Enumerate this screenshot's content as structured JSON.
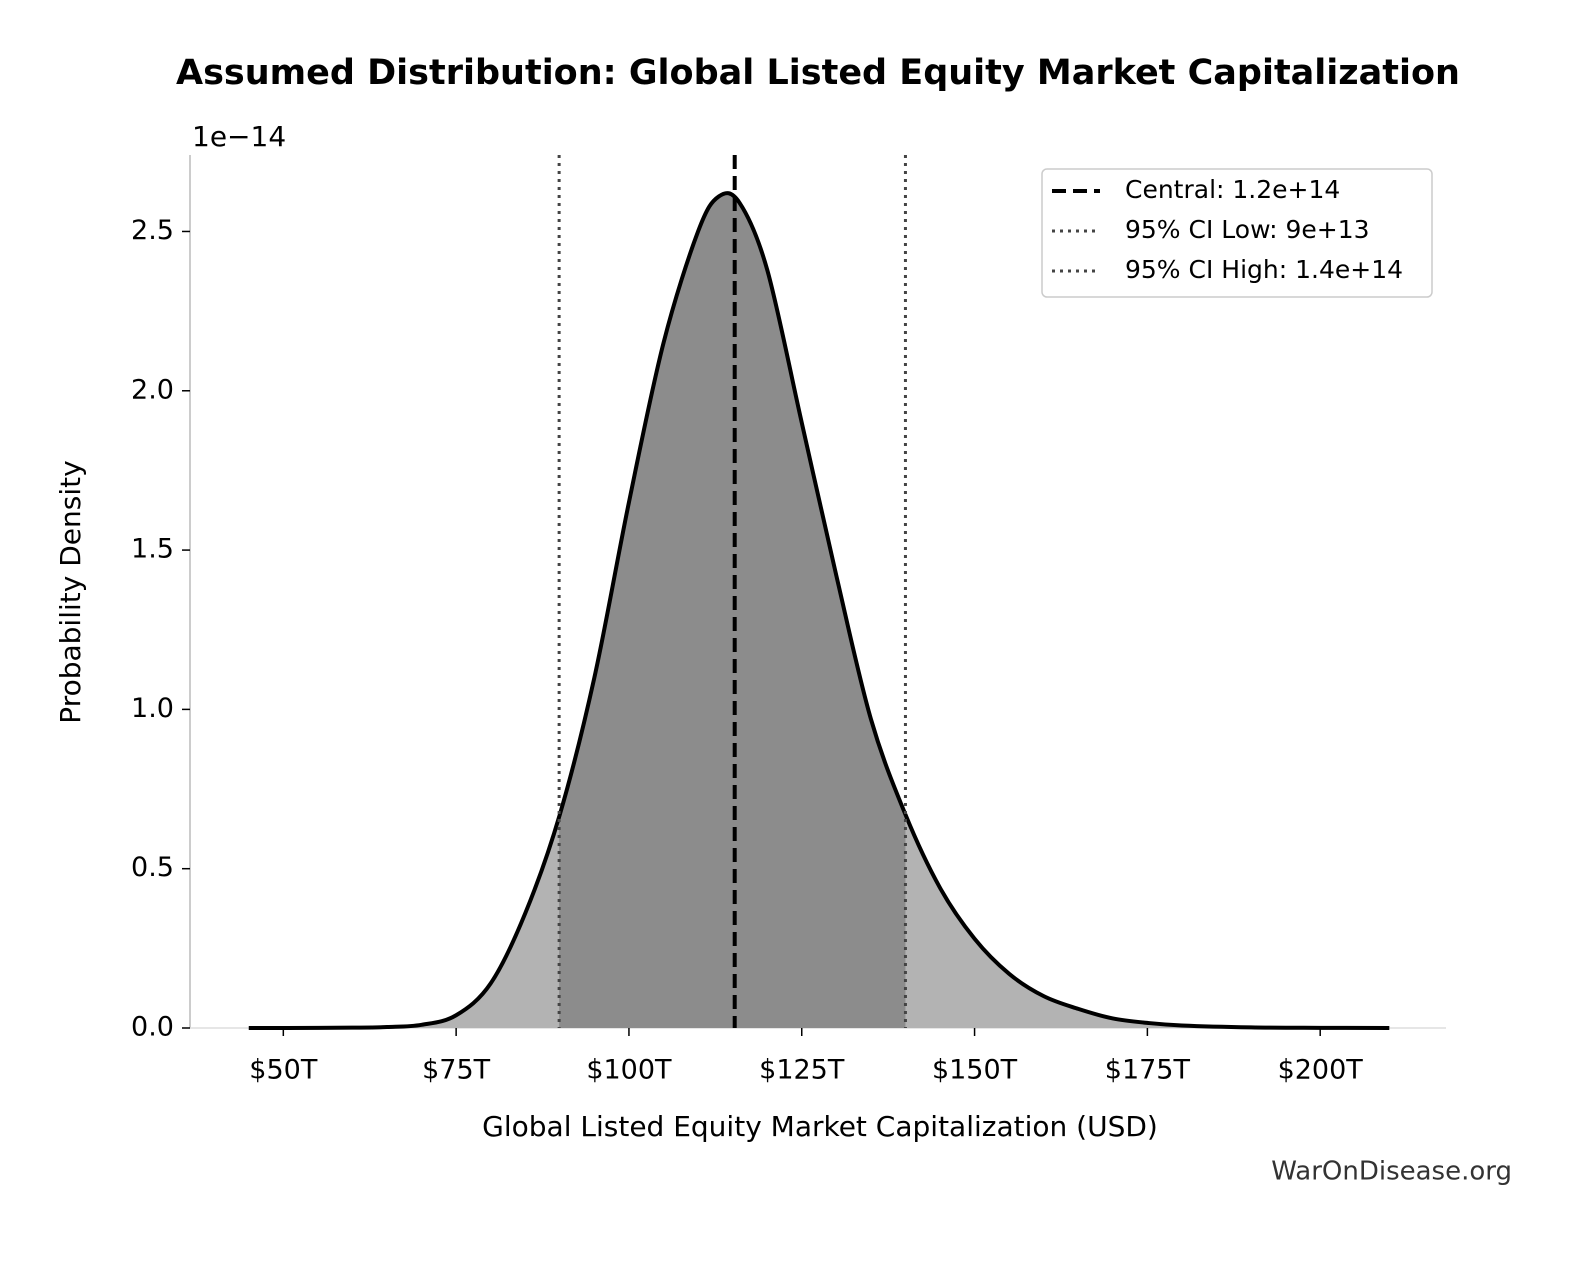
{
  "chart_data": {
    "type": "area",
    "title": "Assumed Distribution: Global Listed Equity Market Capitalization",
    "xlabel": "Global Listed Equity Market Capitalization (USD)",
    "ylabel": "Probability Density",
    "y_offset_text": "1e−14",
    "watermark": "WarOnDisease.org",
    "x": [
      45000000000000,
      50000000000000,
      55000000000000,
      60000000000000,
      65000000000000,
      70000000000000,
      75000000000000,
      80000000000000,
      85000000000000,
      90000000000000,
      95000000000000,
      100000000000000,
      105000000000000,
      110000000000000,
      113000000000000,
      116000000000000,
      120000000000000,
      125000000000000,
      130000000000000,
      135000000000000,
      140000000000000,
      145000000000000,
      150000000000000,
      155000000000000,
      160000000000000,
      165000000000000,
      170000000000000,
      175000000000000,
      180000000000000,
      190000000000000,
      200000000000000,
      210000000000000
    ],
    "values": [
      0,
      0,
      0.0002,
      0.001,
      0.003,
      0.01,
      0.04,
      0.14,
      0.36,
      0.67,
      1.1,
      1.65,
      2.15,
      2.5,
      2.61,
      2.59,
      2.38,
      1.9,
      1.42,
      0.97,
      0.67,
      0.44,
      0.28,
      0.17,
      0.1,
      0.06,
      0.03,
      0.016,
      0.008,
      0.002,
      0.0005,
      0
    ],
    "color": "#000000",
    "fill_color": "#b3b3b3",
    "ci_fill_color": "#8c8c8c",
    "reference_lines": [
      {
        "name": "Central: 1.2e+14",
        "value": 115300000000000,
        "style": "dashed",
        "color": "#000000"
      },
      {
        "name": "95% CI Low: 9e+13",
        "value": 89900000000000,
        "style": "dotted",
        "color": "#444444"
      },
      {
        "name": "95% CI High: 1.4e+14",
        "value": 140000000000000,
        "style": "dotted",
        "color": "#444444"
      }
    ],
    "legend": "upper right",
    "xlim": [
      36500000000000,
      218200000000000
    ],
    "ylim": [
      0,
      2.74
    ],
    "xticks": [
      {
        "value": 50000000000000,
        "label": "$50T"
      },
      {
        "value": 75000000000000,
        "label": "$75T"
      },
      {
        "value": 100000000000000,
        "label": "$100T"
      },
      {
        "value": 125000000000000,
        "label": "$125T"
      },
      {
        "value": 150000000000000,
        "label": "$150T"
      },
      {
        "value": 175000000000000,
        "label": "$175T"
      },
      {
        "value": 200000000000000,
        "label": "$200T"
      }
    ],
    "yticks": [
      {
        "value": 0,
        "label": "0.0"
      },
      {
        "value": 0.5,
        "label": "0.5"
      },
      {
        "value": 1,
        "label": "1.0"
      },
      {
        "value": 1.5,
        "label": "1.5"
      },
      {
        "value": 2,
        "label": "2.0"
      },
      {
        "value": 2.5,
        "label": "2.5"
      }
    ]
  }
}
